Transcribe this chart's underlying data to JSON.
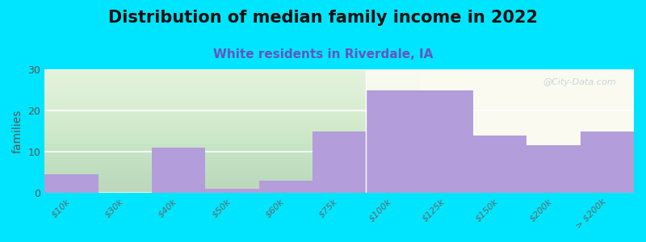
{
  "title": "Distribution of median family income in 2022",
  "subtitle": "White residents in Riverdale, IA",
  "ylabel": "families",
  "categories": [
    "$10k",
    "$30k",
    "$40k",
    "$50k",
    "$60k",
    "$75k",
    "$100k",
    "$125k",
    "$150k",
    "$200k",
    "> $200k"
  ],
  "values": [
    4.5,
    0,
    11,
    1,
    3,
    15,
    25,
    25,
    14,
    11.5,
    15
  ],
  "bar_color": "#b39ddb",
  "gap_indices": [
    1
  ],
  "ylim": [
    0,
    30
  ],
  "yticks": [
    0,
    10,
    20,
    30
  ],
  "background_color": "#00e5ff",
  "plot_bg_color_left": "#dff0d8",
  "plot_bg_color_right": "#fafaf0",
  "title_fontsize": 15,
  "subtitle_fontsize": 11,
  "subtitle_color": "#6655bb",
  "ylabel_fontsize": 10,
  "watermark": "@City-Data.com",
  "green_boundary_index": 6
}
